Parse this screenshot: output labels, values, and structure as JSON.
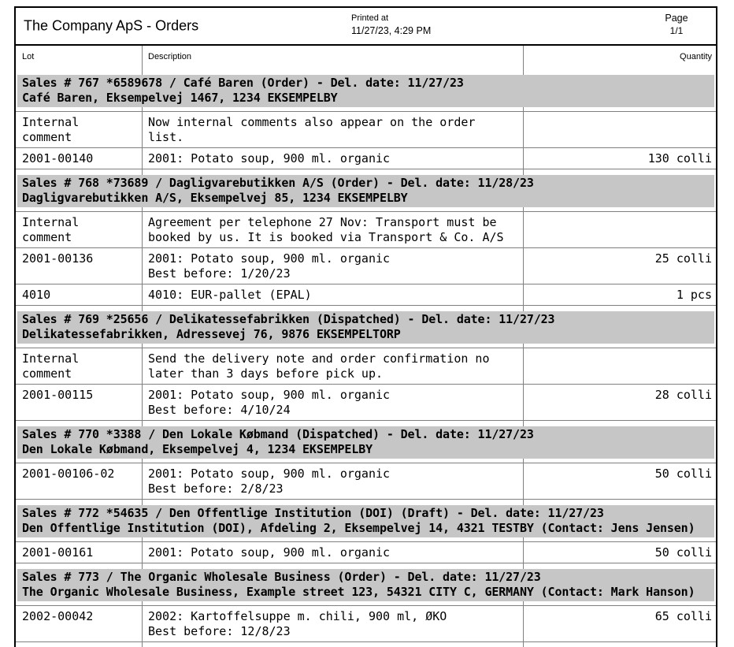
{
  "header": {
    "title": "The Company ApS - Orders",
    "printed_at_label": "Printed at",
    "printed_at_value": "11/27/23, 4:29 PM",
    "page_label": "Page",
    "page_value": "1/1"
  },
  "columns": {
    "lot": "Lot",
    "description": "Description",
    "quantity": "Quantity"
  },
  "colors": {
    "page_bg": "#ffffff",
    "band_bg": "#c6c6c6",
    "grid_line": "#808080",
    "outer_border": "#000000",
    "text": "#000000"
  },
  "sections": [
    {
      "header_line1": "Sales # 767 *6589678 / Café Baren (Order) - Del. date: 11/27/23",
      "header_line2": "Café Baren, Eksempelvej 1467, 1234 EKSEMPELBY",
      "rows": [
        {
          "lot": "Internal\ncomment",
          "description": "Now internal comments also appear on the order\nlist.",
          "quantity": ""
        },
        {
          "lot": "2001-00140",
          "description": "2001: Potato soup, 900 ml. organic",
          "quantity": "130 colli"
        }
      ]
    },
    {
      "header_line1": "Sales # 768 *73689 / Dagligvarebutikken A/S (Order) - Del. date: 11/28/23",
      "header_line2": "Dagligvarebutikken A/S, Eksempelvej 85, 1234 EKSEMPELBY",
      "rows": [
        {
          "lot": "Internal\ncomment",
          "description": "Agreement per telephone 27 Nov: Transport must be\nbooked by us. It is booked via Transport & Co. A/S",
          "quantity": ""
        },
        {
          "lot": "2001-00136",
          "description": "2001: Potato soup, 900 ml. organic\nBest before: 1/20/23",
          "quantity": "25 colli"
        },
        {
          "lot": "4010",
          "description": "4010: EUR-pallet (EPAL)",
          "quantity": "1 pcs"
        }
      ]
    },
    {
      "header_line1": "Sales # 769 *25656 / Delikatessefabrikken (Dispatched) - Del. date: 11/27/23",
      "header_line2": "Delikatessefabrikken, Adressevej 76, 9876 EKSEMPELTORP",
      "rows": [
        {
          "lot": "Internal\ncomment",
          "description": "Send the delivery note and order confirmation no\nlater than 3 days before pick up.",
          "quantity": ""
        },
        {
          "lot": "2001-00115",
          "description": "2001: Potato soup, 900 ml. organic\nBest before: 4/10/24",
          "quantity": "28 colli"
        }
      ]
    },
    {
      "header_line1": "Sales # 770 *3388 / Den Lokale Købmand (Dispatched) - Del. date: 11/27/23",
      "header_line2": "Den Lokale Købmand, Eksempelvej 4, 1234 EKSEMPELBY",
      "rows": [
        {
          "lot": "2001-00106-02",
          "description": "2001: Potato soup, 900 ml. organic\nBest before: 2/8/23",
          "quantity": "50 colli"
        }
      ]
    },
    {
      "header_line1": "Sales # 772 *54635 / Den Offentlige Institution (DOI) (Draft) - Del. date: 11/27/23",
      "header_line2": "Den Offentlige Institution (DOI), Afdeling 2, Eksempelvej 14, 4321 TESTBY (Contact: Jens Jensen)",
      "rows": [
        {
          "lot": "2001-00161",
          "description": "2001: Potato soup, 900 ml. organic",
          "quantity": "50 colli"
        }
      ]
    },
    {
      "header_line1": "Sales # 773 / The Organic Wholesale Business (Order) - Del. date: 11/27/23",
      "header_line2": "The Organic Wholesale Business, Example street 123, 54321 CITY C, GERMANY (Contact: Mark Hanson)",
      "rows": [
        {
          "lot": "2002-00042",
          "description": "2002: Kartoffelsuppe m. chili, 900 ml, ØKO\nBest before: 12/8/23",
          "quantity": "65 colli"
        }
      ]
    }
  ]
}
